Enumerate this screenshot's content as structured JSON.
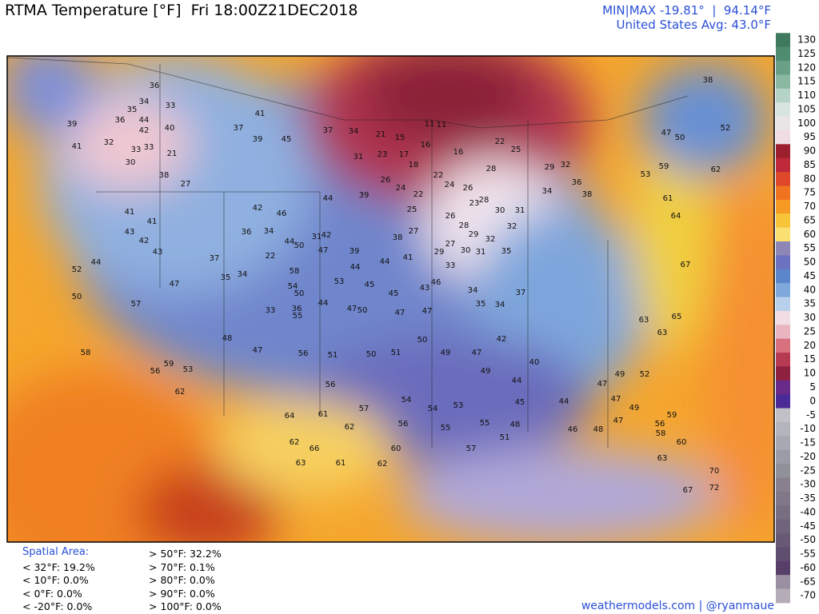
{
  "header": {
    "title": "RTMA Temperature [°F]  Fri 18:00Z21DEC2018",
    "minmax": "MIN|MAX -19.81°  |  94.14°F",
    "avg": "United States Avg: 43.0°F"
  },
  "colorbar": {
    "ticks": [
      130,
      125,
      120,
      115,
      110,
      105,
      100,
      95,
      90,
      85,
      80,
      75,
      70,
      65,
      60,
      55,
      50,
      45,
      40,
      35,
      30,
      25,
      20,
      15,
      10,
      5,
      0,
      -5,
      -10,
      -15,
      -20,
      -25,
      -30,
      -35,
      -40,
      -45,
      -50,
      -55,
      -60,
      -65,
      -70
    ],
    "colors": [
      "#3f7a5e",
      "#4f8c70",
      "#6ba088",
      "#8ab8a2",
      "#b5d2c6",
      "#d8e4e0",
      "#e9e4e6",
      "#f0dde4",
      "#9c1f2e",
      "#bf2a3a",
      "#e0482a",
      "#f07420",
      "#f59a22",
      "#f8c43a",
      "#f9e070",
      "#8f86b8",
      "#6c72c0",
      "#5c86cc",
      "#7fa8dc",
      "#b8d0ec",
      "#f2dde4",
      "#eab4c0",
      "#d8707e",
      "#b63a52",
      "#8e2040",
      "#6a2a8a",
      "#4a2a96",
      "#c0c0c6",
      "#b4b4bc",
      "#a8a8b2",
      "#9c9ca8",
      "#909098",
      "#88808e",
      "#807888",
      "#786e82",
      "#70647c",
      "#685a76",
      "#604e70",
      "#583f6a",
      "#9a8fa0",
      "#b4adb8"
    ]
  },
  "stations": [
    "36",
    "34",
    "33",
    "35",
    "36",
    "44",
    "42",
    "40",
    "39",
    "41",
    "32",
    "33",
    "33",
    "21",
    "30",
    "38",
    "27",
    "41",
    "37",
    "39",
    "45",
    "37",
    "34",
    "21",
    "15",
    "11",
    "11",
    "16",
    "16",
    "22",
    "25",
    "31",
    "23",
    "17",
    "18",
    "22",
    "24",
    "26",
    "28",
    "29",
    "32",
    "34",
    "36",
    "38",
    "46",
    "42",
    "41",
    "41",
    "43",
    "42",
    "43",
    "47",
    "50",
    "52",
    "44",
    "57",
    "58",
    "56",
    "59",
    "53",
    "62",
    "48",
    "47",
    "56",
    "51",
    "50",
    "51",
    "50",
    "49",
    "47",
    "49",
    "42",
    "40",
    "56",
    "57",
    "54",
    "54",
    "53",
    "55",
    "51",
    "48",
    "45",
    "44",
    "44",
    "47",
    "49",
    "52",
    "47",
    "49",
    "47",
    "48",
    "46",
    "60",
    "62",
    "61",
    "63",
    "66",
    "62",
    "64",
    "61",
    "62",
    "56",
    "55",
    "57",
    "63",
    "63",
    "65",
    "67",
    "64",
    "61",
    "59",
    "53",
    "50",
    "47",
    "38",
    "52",
    "62",
    "70",
    "72",
    "67",
    "63",
    "60",
    "58",
    "56",
    "59",
    "33",
    "36",
    "55",
    "44",
    "50",
    "58",
    "54",
    "34",
    "35",
    "37",
    "22",
    "34",
    "36",
    "44",
    "50",
    "47",
    "42",
    "31",
    "44",
    "39",
    "26",
    "24",
    "25",
    "22",
    "27",
    "38",
    "44",
    "41",
    "39",
    "44",
    "53",
    "45",
    "45",
    "47",
    "50",
    "47",
    "47",
    "43",
    "46",
    "26",
    "28",
    "27",
    "29",
    "33",
    "30",
    "31",
    "29",
    "34",
    "35",
    "34",
    "37",
    "35",
    "32",
    "32",
    "30",
    "31",
    "28",
    "23"
  ],
  "stats": {
    "title": "Spatial Area:",
    "items": [
      "< 32°F: 19.2%",
      "< 10°F: 0.0%",
      "< 0°F: 0.0%",
      "< -20°F: 0.0%",
      "> 50°F: 32.2%",
      "> 70°F: 0.1%",
      "> 80°F: 0.0%",
      "> 90°F: 0.0%",
      "> 100°F: 0.0%"
    ]
  },
  "footer": "weathermodels.com | @ryanmaue"
}
